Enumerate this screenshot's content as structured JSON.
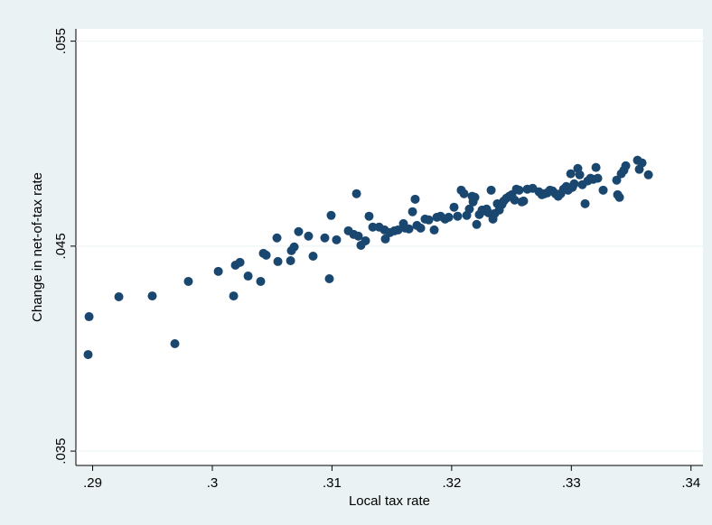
{
  "chart_data": {
    "type": "scatter",
    "x_label": "Local tax rate",
    "y_label": "Change in net-of-tax rate",
    "color": "#1a476f",
    "grid": true,
    "xlim": [
      0.2886,
      0.341
    ],
    "ylim": [
      0.0343,
      0.0556
    ],
    "xticks": [
      {
        "value": 0.29,
        "label": ".29"
      },
      {
        "value": 0.3,
        "label": ".3"
      },
      {
        "value": 0.31,
        "label": ".31"
      },
      {
        "value": 0.32,
        "label": ".32"
      },
      {
        "value": 0.33,
        "label": ".33"
      },
      {
        "value": 0.34,
        "label": ".34"
      }
    ],
    "yticks": [
      {
        "value": 0.035,
        "label": ".035"
      },
      {
        "value": 0.045,
        "label": ".045"
      },
      {
        "value": 0.055,
        "label": ".055"
      }
    ],
    "x": [
      0.28962,
      0.2897,
      0.29219,
      0.29498,
      0.29687,
      0.298,
      0.3005,
      0.30178,
      0.30193,
      0.30231,
      0.30299,
      0.30404,
      0.30427,
      0.3045,
      0.3054,
      0.30548,
      0.30654,
      0.30661,
      0.30684,
      0.30721,
      0.30804,
      0.30842,
      0.3094,
      0.30978,
      0.30993,
      0.31038,
      0.31137,
      0.31182,
      0.31205,
      0.3122,
      0.31242,
      0.3128,
      0.3131,
      0.31341,
      0.31394,
      0.31439,
      0.31446,
      0.31484,
      0.31522,
      0.31552,
      0.31597,
      0.31612,
      0.31643,
      0.31673,
      0.31695,
      0.3171,
      0.31741,
      0.31778,
      0.31809,
      0.31854,
      0.31877,
      0.31907,
      0.31945,
      0.31975,
      0.3202,
      0.3205,
      0.3208,
      0.32103,
      0.32126,
      0.32148,
      0.32171,
      0.32179,
      0.32194,
      0.32209,
      0.32231,
      0.32254,
      0.32269,
      0.32292,
      0.32307,
      0.3233,
      0.32345,
      0.3236,
      0.32382,
      0.32398,
      0.3242,
      0.32435,
      0.32458,
      0.32481,
      0.32503,
      0.32526,
      0.32541,
      0.32564,
      0.32586,
      0.32601,
      0.32632,
      0.32677,
      0.3273,
      0.32754,
      0.32776,
      0.32799,
      0.32822,
      0.32844,
      0.32867,
      0.3289,
      0.32912,
      0.32935,
      0.32958,
      0.32973,
      0.32995,
      0.33009,
      0.33024,
      0.33054,
      0.3307,
      0.33092,
      0.33115,
      0.33137,
      0.3316,
      0.33183,
      0.33206,
      0.33221,
      0.33266,
      0.33379,
      0.33387,
      0.33402,
      0.33417,
      0.33439,
      0.33455,
      0.33553,
      0.33568,
      0.33591,
      0.33644
    ],
    "values": [
      0.03971,
      0.04156,
      0.04253,
      0.04257,
      0.04024,
      0.04328,
      0.04377,
      0.04257,
      0.04407,
      0.04421,
      0.04354,
      0.04328,
      0.04465,
      0.04456,
      0.0454,
      0.04425,
      0.04429,
      0.04478,
      0.04496,
      0.04571,
      0.04549,
      0.04451,
      0.0454,
      0.04341,
      0.0465,
      0.04531,
      0.04575,
      0.04557,
      0.04756,
      0.04549,
      0.04504,
      0.04526,
      0.04646,
      0.04593,
      0.04593,
      0.04579,
      0.04535,
      0.04566,
      0.04575,
      0.04579,
      0.0461,
      0.04588,
      0.04584,
      0.04668,
      0.04729,
      0.04601,
      0.04588,
      0.04632,
      0.04628,
      0.04579,
      0.04641,
      0.04646,
      0.04632,
      0.04641,
      0.0469,
      0.04646,
      0.04773,
      0.04756,
      0.0465,
      0.04681,
      0.04743,
      0.04716,
      0.04738,
      0.04606,
      0.04654,
      0.04676,
      0.04672,
      0.04681,
      0.04663,
      0.04773,
      0.04632,
      0.04659,
      0.04707,
      0.04676,
      0.04703,
      0.0472,
      0.04734,
      0.04743,
      0.04751,
      0.04725,
      0.04778,
      0.04773,
      0.04716,
      0.0472,
      0.04778,
      0.04782,
      0.04765,
      0.04751,
      0.04756,
      0.0476,
      0.04773,
      0.04769,
      0.04756,
      0.04743,
      0.04756,
      0.04778,
      0.04791,
      0.04773,
      0.04853,
      0.04787,
      0.04804,
      0.04879,
      0.04848,
      0.048,
      0.04707,
      0.04818,
      0.04831,
      0.04826,
      0.04884,
      0.04831,
      0.04773,
      0.04822,
      0.04751,
      0.04738,
      0.04853,
      0.0487,
      0.04892,
      0.04919,
      0.04875,
      0.04906,
      0.04848
    ]
  }
}
